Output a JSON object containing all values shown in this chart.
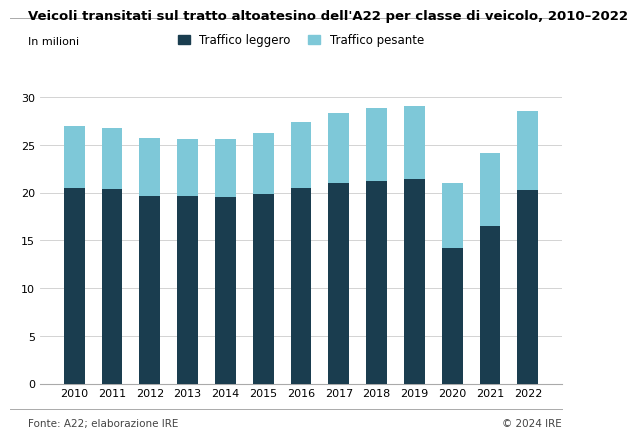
{
  "title": "Veicoli transitati sul tratto altoatesino dell'A22 per classe di veicolo, 2010–2022",
  "subtitle": "In milioni",
  "years": [
    2010,
    2011,
    2012,
    2013,
    2014,
    2015,
    2016,
    2017,
    2018,
    2019,
    2020,
    2021,
    2022
  ],
  "traffico_leggero": [
    20.5,
    20.4,
    19.6,
    19.6,
    19.5,
    19.9,
    20.5,
    21.0,
    21.2,
    21.4,
    14.2,
    16.5,
    20.3
  ],
  "traffico_pesante": [
    6.5,
    6.4,
    6.1,
    6.0,
    6.1,
    6.3,
    6.9,
    7.3,
    7.7,
    7.7,
    6.8,
    7.6,
    8.3
  ],
  "color_leggero": "#1a3d4f",
  "color_pesante": "#7ec8d8",
  "ylim": [
    0,
    32
  ],
  "yticks": [
    0,
    5,
    10,
    15,
    20,
    25,
    30
  ],
  "legend_leggero": "Traffico leggero",
  "legend_pesante": "Traffico pesante",
  "footer_left": "Fonte: A22; elaborazione IRE",
  "footer_right": "© 2024 IRE",
  "background_color": "#ffffff",
  "bar_width": 0.55,
  "title_fontsize": 9.5,
  "subtitle_fontsize": 8.0,
  "tick_fontsize": 8.0,
  "legend_fontsize": 8.5,
  "footer_fontsize": 7.5
}
